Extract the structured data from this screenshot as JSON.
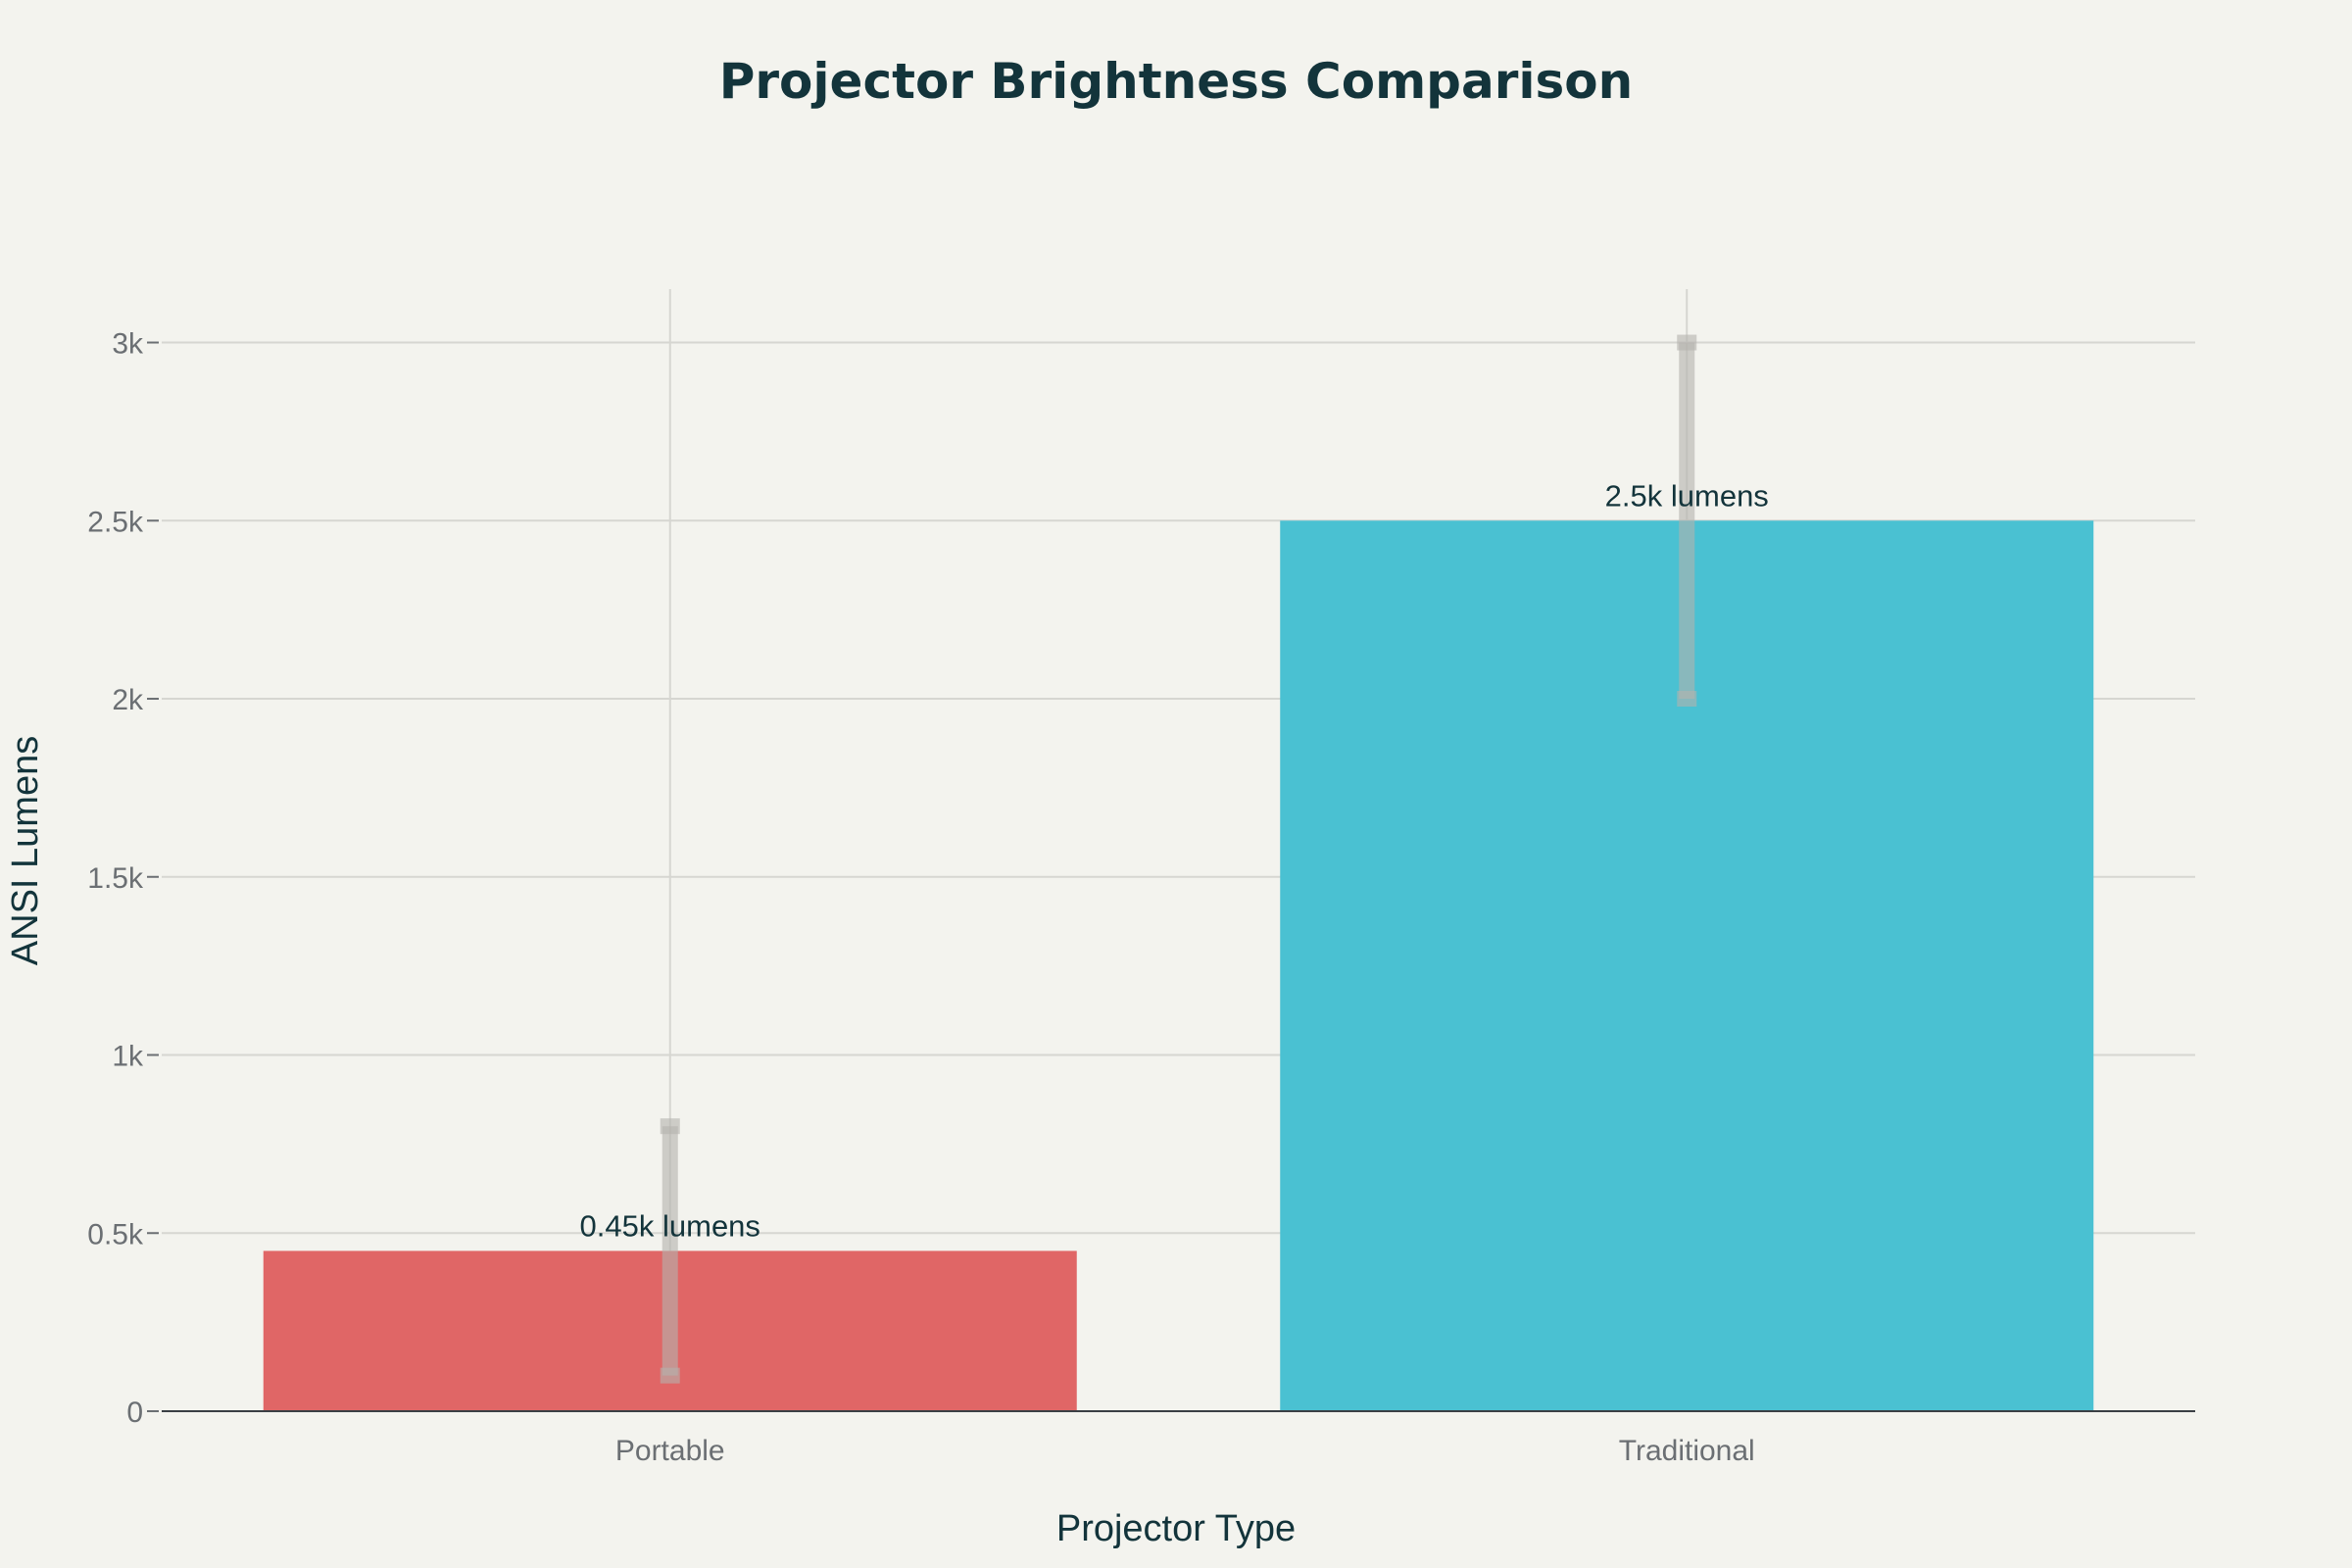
{
  "chart_data": {
    "type": "bar",
    "title": "Projector Brightness Comparison",
    "xlabel": "Projector Type",
    "ylabel": "ANSI Lumens",
    "categories": [
      "Portable",
      "Traditional"
    ],
    "values": [
      450,
      2500
    ],
    "error_low": [
      100,
      2000
    ],
    "error_high": [
      800,
      3000
    ],
    "data_labels": [
      "0.45k lumens",
      "2.5k lumens"
    ],
    "colors": [
      "#e06666",
      "#4ac1d2"
    ],
    "ylim": [
      0,
      3150
    ],
    "y_ticks": [
      0,
      500,
      1000,
      1500,
      2000,
      2500,
      3000
    ],
    "y_tick_labels": [
      "0",
      "0.5k",
      "1k",
      "1.5k",
      "2k",
      "2.5k",
      "3k"
    ],
    "grid": true,
    "legend": "none"
  }
}
